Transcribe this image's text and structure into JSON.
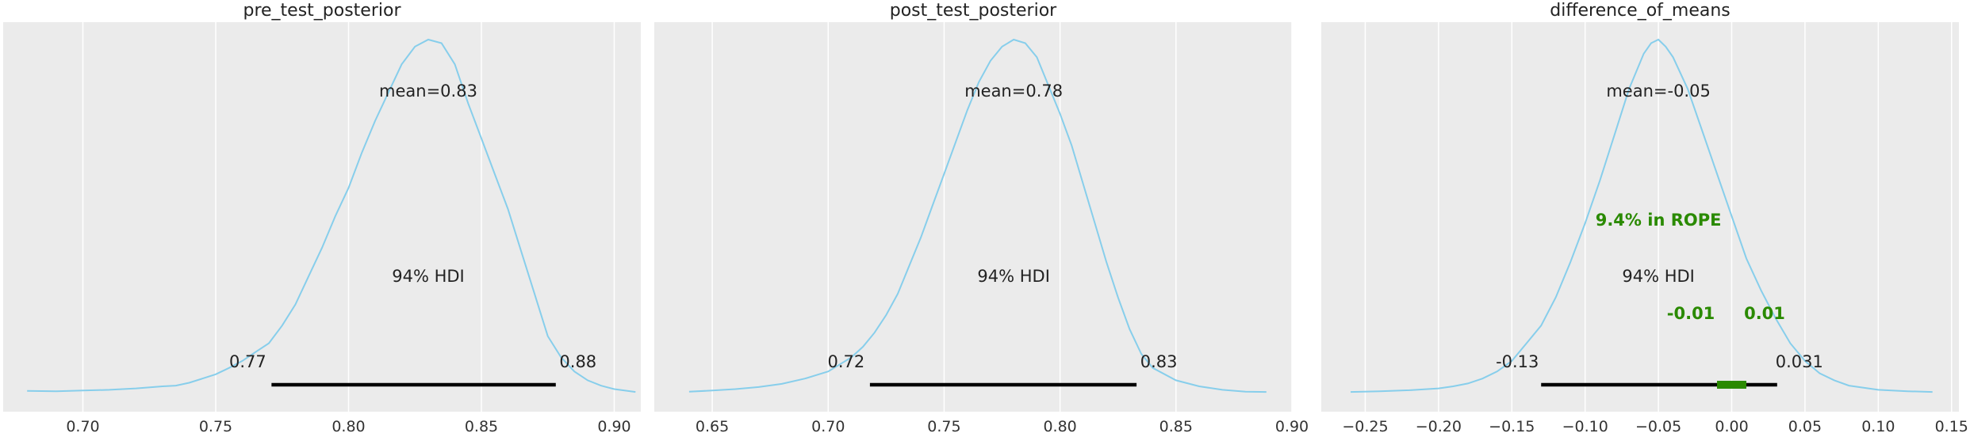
{
  "chart_data": [
    {
      "type": "area",
      "title": "pre_test_posterior",
      "xlabel": "",
      "ylabel": "",
      "xlim": [
        0.67,
        0.91
      ],
      "xticks": [
        0.7,
        0.75,
        0.8,
        0.85,
        0.9
      ],
      "xtick_labels": [
        "0.70",
        "0.75",
        "0.80",
        "0.85",
        "0.90"
      ],
      "grid": true,
      "curve_color": "#87ceeb",
      "background_color": "#ebebeb",
      "density": {
        "x": [
          0.679,
          0.69,
          0.7,
          0.71,
          0.72,
          0.73,
          0.735,
          0.74,
          0.745,
          0.75,
          0.755,
          0.76,
          0.765,
          0.77,
          0.775,
          0.78,
          0.785,
          0.79,
          0.795,
          0.8,
          0.805,
          0.81,
          0.815,
          0.82,
          0.825,
          0.83,
          0.835,
          0.84,
          0.845,
          0.85,
          0.855,
          0.86,
          0.865,
          0.87,
          0.875,
          0.88,
          0.885,
          0.89,
          0.895,
          0.9,
          0.905,
          0.908
        ],
        "y": [
          0.005,
          0.004,
          0.006,
          0.008,
          0.012,
          0.018,
          0.02,
          0.028,
          0.04,
          0.052,
          0.07,
          0.09,
          0.115,
          0.14,
          0.19,
          0.25,
          0.33,
          0.41,
          0.5,
          0.58,
          0.68,
          0.77,
          0.85,
          0.93,
          0.98,
          1.0,
          0.99,
          0.93,
          0.82,
          0.72,
          0.62,
          0.52,
          0.4,
          0.28,
          0.16,
          0.1,
          0.06,
          0.035,
          0.02,
          0.01,
          0.005,
          0.002
        ]
      },
      "mean_label": "mean=0.83",
      "mean": 0.83,
      "hdi_label": "94% HDI",
      "hdi": [
        0.771,
        0.878
      ],
      "hdi_low_label": "0.77",
      "hdi_high_label": "0.88"
    },
    {
      "type": "area",
      "title": "post_test_posterior",
      "xlabel": "",
      "ylabel": "",
      "xlim": [
        0.625,
        0.9
      ],
      "xticks": [
        0.65,
        0.7,
        0.75,
        0.8,
        0.85,
        0.9
      ],
      "xtick_labels": [
        "0.65",
        "0.70",
        "0.75",
        "0.80",
        "0.85",
        "0.90"
      ],
      "grid": true,
      "curve_color": "#87ceeb",
      "background_color": "#ebebeb",
      "density": {
        "x": [
          0.64,
          0.65,
          0.66,
          0.67,
          0.68,
          0.69,
          0.695,
          0.7,
          0.705,
          0.71,
          0.715,
          0.72,
          0.725,
          0.73,
          0.735,
          0.74,
          0.745,
          0.75,
          0.755,
          0.76,
          0.765,
          0.77,
          0.775,
          0.78,
          0.785,
          0.79,
          0.795,
          0.8,
          0.805,
          0.81,
          0.815,
          0.82,
          0.825,
          0.83,
          0.835,
          0.84,
          0.85,
          0.86,
          0.87,
          0.88,
          0.889
        ],
        "y": [
          0.003,
          0.006,
          0.01,
          0.016,
          0.025,
          0.04,
          0.05,
          0.06,
          0.08,
          0.1,
          0.13,
          0.17,
          0.22,
          0.28,
          0.36,
          0.44,
          0.53,
          0.62,
          0.71,
          0.8,
          0.88,
          0.94,
          0.98,
          1.0,
          0.99,
          0.95,
          0.87,
          0.79,
          0.7,
          0.59,
          0.48,
          0.37,
          0.27,
          0.18,
          0.11,
          0.07,
          0.035,
          0.018,
          0.008,
          0.003,
          0.002
        ]
      },
      "mean_label": "mean=0.78",
      "mean": 0.78,
      "hdi_label": "94% HDI",
      "hdi": [
        0.718,
        0.833
      ],
      "hdi_low_label": "0.72",
      "hdi_high_label": "0.83"
    },
    {
      "type": "area",
      "title": "difference_of_means",
      "xlabel": "",
      "ylabel": "",
      "xlim": [
        -0.28,
        0.155
      ],
      "xticks": [
        -0.25,
        -0.2,
        -0.15,
        -0.1,
        -0.05,
        0.0,
        0.05,
        0.1,
        0.15
      ],
      "xtick_labels": [
        "−0.25",
        "−0.20",
        "−0.15",
        "−0.10",
        "−0.05",
        "0.00",
        "0.05",
        "0.10",
        "0.15"
      ],
      "grid": true,
      "curve_color": "#87ceeb",
      "background_color": "#ebebeb",
      "rope_color": "#2a8a00",
      "density": {
        "x": [
          -0.26,
          -0.24,
          -0.22,
          -0.2,
          -0.19,
          -0.18,
          -0.17,
          -0.16,
          -0.15,
          -0.14,
          -0.13,
          -0.12,
          -0.11,
          -0.1,
          -0.09,
          -0.08,
          -0.07,
          -0.06,
          -0.055,
          -0.05,
          -0.045,
          -0.04,
          -0.03,
          -0.02,
          -0.01,
          0.0,
          0.01,
          0.02,
          0.03,
          0.04,
          0.05,
          0.06,
          0.07,
          0.08,
          0.1,
          0.12,
          0.137
        ],
        "y": [
          0.002,
          0.004,
          0.007,
          0.012,
          0.018,
          0.026,
          0.04,
          0.06,
          0.09,
          0.14,
          0.19,
          0.27,
          0.37,
          0.48,
          0.6,
          0.73,
          0.86,
          0.96,
          0.99,
          1.0,
          0.98,
          0.95,
          0.86,
          0.74,
          0.62,
          0.5,
          0.38,
          0.29,
          0.21,
          0.14,
          0.09,
          0.055,
          0.035,
          0.02,
          0.008,
          0.004,
          0.002
        ]
      },
      "mean_label": "mean=-0.05",
      "mean": -0.05,
      "hdi_label": "94% HDI",
      "hdi": [
        -0.13,
        0.031
      ],
      "hdi_low_label": "-0.13",
      "hdi_high_label": "0.031",
      "rope": [
        -0.01,
        0.01
      ],
      "rope_text": "9.4% in ROPE",
      "rope_low_label": "-0.01",
      "rope_high_label": "0.01"
    }
  ]
}
